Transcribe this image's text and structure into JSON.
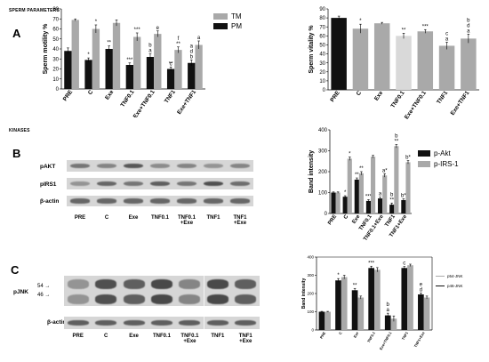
{
  "figure": {
    "sections": {
      "sperm": "SPERM PARAMETERS",
      "kinases": "KINASES"
    },
    "panels": {
      "a": "A",
      "b": "B",
      "c": "C"
    }
  },
  "colors": {
    "black": "#111111",
    "grey": "#a9a9a9",
    "light": "#d9d9d9"
  },
  "blots": {
    "b": {
      "rows": [
        "pAKT",
        "pIRS1",
        "β-actin"
      ],
      "lanes": [
        "PRE",
        "C",
        "Exe",
        "TNF0.1",
        "TNF0.1\n+Exe",
        "TNF1",
        "TNF1\n+Exe"
      ]
    },
    "c": {
      "rows": [
        "pJNK",
        "β-actin"
      ],
      "markers": [
        "54",
        "46"
      ],
      "lanes": [
        "PRE",
        "C",
        "Exe",
        "TNF0.1",
        "TNF0.1\n+Exe",
        "TNF1",
        "TNF1\n+Exe"
      ]
    }
  },
  "chart_data": [
    {
      "id": "motility",
      "type": "bar",
      "ylabel": "Sperm motility %",
      "ylim": [
        0,
        80
      ],
      "yticks": [
        0,
        10,
        20,
        30,
        40,
        50,
        60,
        70,
        80
      ],
      "categories": [
        "PRE",
        "C",
        "Exe",
        "TNF0.1",
        "Exe+TNF0.1",
        "TNF1",
        "Exe+TNF1"
      ],
      "series": [
        {
          "name": "PM",
          "color": "#111111",
          "values": [
            38,
            29,
            40,
            24,
            32,
            20,
            26
          ],
          "errors": [
            3,
            2,
            3,
            2,
            3,
            2,
            3
          ],
          "annotations": [
            "",
            "*",
            "**",
            "***",
            "",
            "**",
            ""
          ]
        },
        {
          "name": "TM",
          "color": "#a9a9a9",
          "values": [
            69,
            60,
            66,
            52,
            55,
            39,
            44
          ],
          "errors": [
            1,
            4,
            3,
            4,
            3,
            3,
            4
          ],
          "annotations": [
            "",
            "*",
            "",
            "***",
            "e",
            "f\n**",
            "a"
          ]
        }
      ],
      "extra_annotations": [
        {
          "category": 4,
          "text": "b\na",
          "series": 0
        },
        {
          "category": 5,
          "text": "c",
          "series": 0
        },
        {
          "category": 6,
          "text": "a\nd\nb",
          "series": 0
        }
      ]
    },
    {
      "id": "vitality",
      "type": "bar",
      "ylabel": "Sperm vitality %",
      "ylim": [
        0,
        90
      ],
      "yticks": [
        0,
        10,
        20,
        30,
        40,
        50,
        60,
        70,
        80,
        90
      ],
      "categories": [
        "PRE",
        "C",
        "Exe",
        "TNF0.1",
        "Exe+TNF0.1",
        "TNF1",
        "Exe+TNF1"
      ],
      "series": [
        {
          "name": "",
          "colors": [
            "#111111",
            "#a9a9a9",
            "#a9a9a9",
            "#d9d9d9",
            "#a9a9a9",
            "#a9a9a9",
            "#a9a9a9"
          ],
          "values": [
            80,
            68,
            74,
            60,
            65,
            49,
            57
          ],
          "errors": [
            2,
            5,
            1,
            3,
            2,
            4,
            5
          ],
          "annotations": [
            "",
            "*",
            "",
            "**",
            "***",
            "c\na",
            "b\nd\na"
          ]
        }
      ]
    },
    {
      "id": "kinases",
      "type": "bar",
      "ylabel": "Band intensity",
      "ylim": [
        0,
        400
      ],
      "yticks": [
        0,
        100,
        200,
        300,
        400
      ],
      "categories": [
        "PRE",
        "C",
        "Exe",
        "TNF0.1",
        "TNF0.1+Exe",
        "TNF1",
        "TNF1+Exe"
      ],
      "series": [
        {
          "name": "p-Akt",
          "color": "#111111",
          "values": [
            100,
            80,
            162,
            60,
            72,
            42,
            64
          ],
          "errors": [
            3,
            5,
            8,
            6,
            6,
            8,
            6
          ],
          "annotations": [
            "",
            "*",
            "**",
            "***",
            "a",
            "b\n**",
            "b*"
          ]
        },
        {
          "name": "p-IRS-1",
          "color": "#a9a9a9",
          "values": [
            100,
            262,
            192,
            272,
            182,
            322,
            245
          ],
          "errors": [
            3,
            8,
            8,
            6,
            8,
            8,
            8
          ],
          "annotations": [
            "",
            "*",
            "**",
            "",
            "a*",
            "b\n**",
            "b*"
          ]
        }
      ]
    },
    {
      "id": "jnk",
      "type": "bar",
      "ylabel": "Band intensity",
      "ylim": [
        0,
        400
      ],
      "yticks": [
        0,
        100,
        200,
        300,
        400
      ],
      "categories": [
        "PRE",
        "C",
        "Exe",
        "TNF0.1",
        "Exe+TNF0.1",
        "TNF1",
        "TNF1+Exe"
      ],
      "series": [
        {
          "name": "p46-JNK",
          "color": "#111111",
          "values": [
            100,
            272,
            218,
            340,
            80,
            340,
            195
          ],
          "errors": [
            2,
            10,
            10,
            10,
            12,
            8,
            8
          ],
          "annotations": [
            "",
            "*",
            "**",
            "***",
            "b\na",
            "c",
            "e\nd"
          ]
        },
        {
          "name": "p54-JNK",
          "color": "#a9a9a9",
          "values": [
            100,
            290,
            178,
            330,
            62,
            355,
            178
          ],
          "errors": [
            2,
            10,
            8,
            12,
            15,
            6,
            8
          ],
          "annotations": [
            "",
            "",
            "",
            "",
            "",
            "",
            ""
          ]
        }
      ]
    }
  ]
}
